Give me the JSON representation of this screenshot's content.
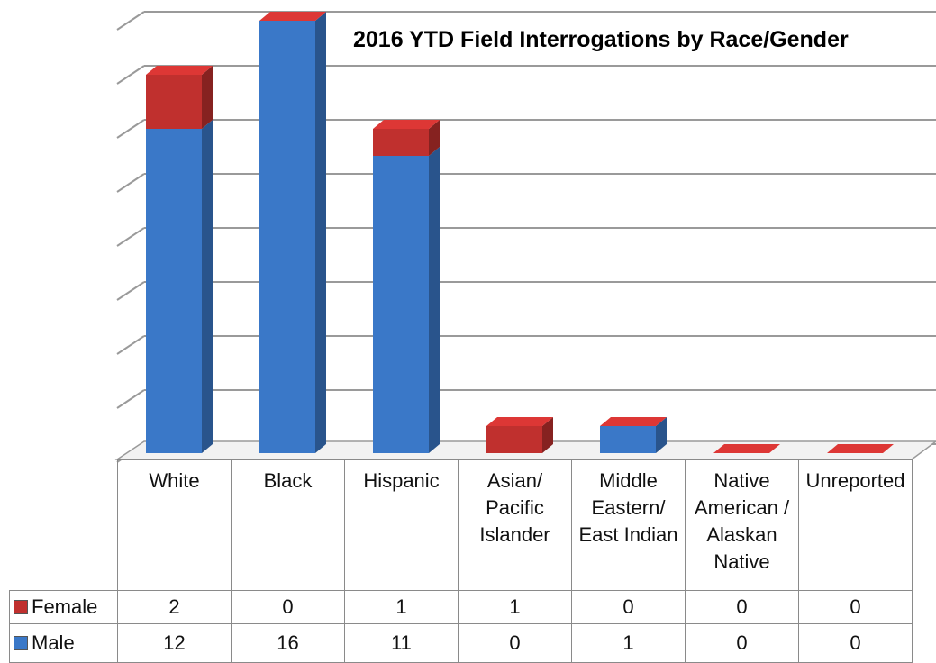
{
  "chart_data": {
    "type": "bar3d_stacked",
    "title": "2016 YTD Field Interrogations by Race/Gender",
    "categories": [
      "White",
      "Black",
      "Hispanic",
      "Asian/ Pacific Islander",
      "Middle Eastern/ East Indian",
      "Native American / Alaskan Native",
      "Unreported"
    ],
    "series": [
      {
        "name": "Female",
        "color": "#c0302e",
        "values": [
          2,
          0,
          1,
          1,
          0,
          0,
          0
        ]
      },
      {
        "name": "Male",
        "color": "#3a78c8",
        "values": [
          12,
          16,
          11,
          0,
          1,
          0,
          0
        ]
      }
    ],
    "ylim": [
      0,
      16
    ],
    "yticks": [
      0,
      2,
      4,
      6,
      8,
      10,
      12,
      14,
      16
    ],
    "grid": true
  }
}
